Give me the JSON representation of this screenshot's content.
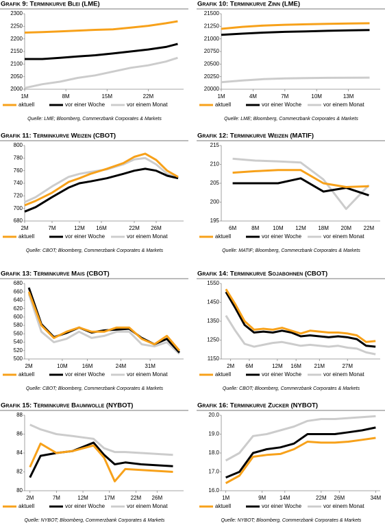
{
  "chart_data": [
    {
      "type": "line",
      "title": "Grafik 9: Terminkurve Blei (LME)",
      "source": "Quelle: LME; Bloomberg, Commerzbank Corporates & Markets",
      "x": [
        1,
        4,
        7,
        10,
        13,
        16,
        19,
        22,
        25,
        27
      ],
      "xlim": [
        1,
        28
      ],
      "xticks": [
        {
          "value": 1,
          "label": "1M"
        },
        {
          "value": 8,
          "label": "8M"
        },
        {
          "value": 15,
          "label": "15M"
        },
        {
          "value": 22,
          "label": "22M"
        }
      ],
      "ylim": [
        2000,
        2300
      ],
      "yticks": [
        2000,
        2050,
        2100,
        2150,
        2200,
        2250,
        2300
      ],
      "series": [
        {
          "name": "aktuell",
          "color": "#f7a11a",
          "values": [
            2225,
            2227,
            2230,
            2233,
            2236,
            2238,
            2245,
            2252,
            2262,
            2270
          ]
        },
        {
          "name": "vor einer Woche",
          "color": "#000000",
          "values": [
            2120,
            2120,
            2125,
            2130,
            2135,
            2142,
            2150,
            2158,
            2168,
            2180
          ]
        },
        {
          "name": "vor einem Monat",
          "color": "#cccccc",
          "values": [
            2005,
            2020,
            2030,
            2045,
            2055,
            2070,
            2085,
            2095,
            2110,
            2125
          ]
        }
      ]
    },
    {
      "type": "line",
      "title": "Grafik 10: Terminkurve Zinn (LME)",
      "source": "Quelle: LME; Bloomberg, Commerzbank Corporates & Markets",
      "x": [
        1,
        3,
        5,
        7,
        9,
        11,
        13,
        15
      ],
      "xlim": [
        1,
        16
      ],
      "xticks": [
        {
          "value": 1,
          "label": "1M"
        },
        {
          "value": 4,
          "label": "4M"
        },
        {
          "value": 7,
          "label": "7M"
        },
        {
          "value": 10,
          "label": "10M"
        },
        {
          "value": 13,
          "label": "13M"
        }
      ],
      "ylim": [
        20000,
        21500
      ],
      "yticks": [
        20000,
        20250,
        20500,
        20750,
        21000,
        21250,
        21500
      ],
      "series": [
        {
          "name": "aktuell",
          "color": "#f7a11a",
          "values": [
            21200,
            21240,
            21265,
            21280,
            21290,
            21298,
            21305,
            21310
          ]
        },
        {
          "name": "vor einer Woche",
          "color": "#000000",
          "values": [
            21080,
            21105,
            21125,
            21140,
            21150,
            21160,
            21168,
            21175
          ]
        },
        {
          "name": "vor einem Monat",
          "color": "#cccccc",
          "values": [
            20140,
            20175,
            20200,
            20215,
            20222,
            20227,
            20229,
            20230
          ]
        }
      ]
    },
    {
      "type": "line",
      "title": "Grafik 11: Terminkurve Weizen (CBOT)",
      "source": "Quelle: CBOT; Bloomberg, Commerzbank Corporates & Markets",
      "x": [
        2,
        4,
        7,
        10,
        12,
        14,
        17,
        20,
        22,
        24,
        26,
        28,
        30
      ],
      "xlim": [
        2,
        31
      ],
      "xticks": [
        {
          "value": 2,
          "label": "2M"
        },
        {
          "value": 7,
          "label": "7M"
        },
        {
          "value": 12,
          "label": "12M"
        },
        {
          "value": 16,
          "label": "16M"
        },
        {
          "value": 22,
          "label": "22M"
        },
        {
          "value": 26,
          "label": "26M"
        }
      ],
      "ylim": [
        680,
        800
      ],
      "yticks": [
        680,
        700,
        720,
        740,
        760,
        780,
        800
      ],
      "series": [
        {
          "name": "aktuell",
          "color": "#f7a11a",
          "values": [
            705,
            712,
            725,
            742,
            748,
            755,
            763,
            772,
            782,
            787,
            777,
            760,
            750
          ]
        },
        {
          "name": "vor einer Woche",
          "color": "#000000",
          "values": [
            695,
            702,
            718,
            733,
            740,
            743,
            748,
            755,
            760,
            763,
            760,
            752,
            748
          ]
        },
        {
          "name": "vor einem Monat",
          "color": "#cccccc",
          "values": [
            710,
            718,
            735,
            750,
            755,
            758,
            762,
            770,
            778,
            780,
            770,
            755,
            748
          ]
        }
      ]
    },
    {
      "type": "line",
      "title": "Grafik 12: Terminkurve Weizen (MATIF)",
      "source": "Quelle: MATIF; Bloomberg, Commerzbank Corporates & Markets",
      "categories": [
        "6M",
        "8M",
        "10M",
        "12M",
        "18M",
        "20M",
        "22M"
      ],
      "ylim": [
        195,
        215
      ],
      "yticks": [
        195,
        200,
        205,
        210,
        215
      ],
      "series": [
        {
          "name": "aktuell",
          "color": "#f7a11a",
          "values": [
            207.8,
            208.2,
            208.5,
            208.5,
            205,
            204,
            204.2
          ]
        },
        {
          "name": "vor einer Woche",
          "color": "#000000",
          "values": [
            205,
            205,
            205,
            206.3,
            202.8,
            203.8,
            201.8
          ]
        },
        {
          "name": "vor einem Monat",
          "color": "#cccccc",
          "values": [
            211.5,
            211,
            210.8,
            210.5,
            206,
            198.2,
            204.5
          ]
        }
      ]
    },
    {
      "type": "line",
      "title": "Grafik 13: Terminkurve Mais (CBOT)",
      "source": "Quelle: CBOT; Bloomberg, Commerzbank Corporates & Markets",
      "x": [
        2,
        5,
        8,
        11,
        14,
        17,
        20,
        23,
        26,
        29,
        32,
        35,
        38
      ],
      "xlim": [
        1,
        39
      ],
      "xticks": [
        {
          "value": 2,
          "label": "2M"
        },
        {
          "value": 10,
          "label": "10M"
        },
        {
          "value": 16,
          "label": "16M"
        },
        {
          "value": 24,
          "label": "24M"
        },
        {
          "value": 31,
          "label": "31M"
        }
      ],
      "ylim": [
        500,
        680
      ],
      "yticks": [
        500,
        520,
        540,
        560,
        580,
        600,
        620,
        640,
        660,
        680
      ],
      "series": [
        {
          "name": "aktuell",
          "color": "#f7a11a",
          "values": [
            660,
            580,
            550,
            565,
            575,
            565,
            565,
            575,
            575,
            548,
            535,
            555,
            520
          ]
        },
        {
          "name": "vor einer Woche",
          "color": "#000000",
          "values": [
            670,
            583,
            552,
            562,
            575,
            563,
            568,
            570,
            572,
            550,
            535,
            548,
            515
          ]
        },
        {
          "name": "vor einem Monat",
          "color": "#cccccc",
          "values": [
            655,
            565,
            540,
            548,
            565,
            550,
            555,
            565,
            565,
            535,
            530,
            540,
            512
          ]
        }
      ]
    },
    {
      "type": "line",
      "title": "Grafik 14: Terminkurve Sojabohnen (CBOT)",
      "source": "Quelle: CBOT; Bloomberg, Commerzbank Corporates & Markets",
      "x": [
        1,
        3,
        5,
        7,
        9,
        11,
        13,
        15,
        17,
        19,
        21,
        23,
        25,
        27,
        29,
        31,
        33
      ],
      "xlim": [
        0,
        34
      ],
      "xticks": [
        {
          "value": 2,
          "label": "2M"
        },
        {
          "value": 6,
          "label": "6M"
        },
        {
          "value": 12,
          "label": "12M"
        },
        {
          "value": 16,
          "label": "16M"
        },
        {
          "value": 21,
          "label": "21M"
        },
        {
          "value": 27,
          "label": "27M"
        }
      ],
      "ylim": [
        1150,
        1550
      ],
      "yticks": [
        1150,
        1250,
        1350,
        1450,
        1550
      ],
      "series": [
        {
          "name": "aktuell",
          "color": "#f7a11a",
          "values": [
            1520,
            1440,
            1350,
            1305,
            1310,
            1305,
            1315,
            1300,
            1285,
            1300,
            1295,
            1290,
            1290,
            1285,
            1275,
            1240,
            1245
          ]
        },
        {
          "name": "vor einer Woche",
          "color": "#000000",
          "values": [
            1505,
            1420,
            1330,
            1290,
            1295,
            1290,
            1300,
            1290,
            1270,
            1275,
            1270,
            1265,
            1270,
            1265,
            1255,
            1220,
            1215
          ]
        },
        {
          "name": "vor einem Monat",
          "color": "#cccccc",
          "values": [
            1380,
            1300,
            1230,
            1215,
            1225,
            1235,
            1240,
            1230,
            1220,
            1225,
            1220,
            1215,
            1220,
            1210,
            1205,
            1185,
            1175
          ]
        }
      ]
    },
    {
      "type": "line",
      "title": "Grafik 15: Terminkurve Baumwolle (NYBOT)",
      "source": "Quelle: NYBOT; Bloomberg, Commerzbank Corporates & Markets",
      "x": [
        2,
        4,
        7,
        10,
        14,
        16,
        18,
        20,
        23,
        29
      ],
      "xlim": [
        1,
        31
      ],
      "xticks": [
        {
          "value": 2,
          "label": "2M"
        },
        {
          "value": 7,
          "label": "7M"
        },
        {
          "value": 12,
          "label": "12M"
        },
        {
          "value": 17,
          "label": "17M"
        },
        {
          "value": 22,
          "label": "22M"
        },
        {
          "value": 26,
          "label": "26M"
        }
      ],
      "ylim": [
        80,
        88
      ],
      "yticks": [
        80,
        82,
        84,
        86,
        88
      ],
      "series": [
        {
          "name": "aktuell",
          "color": "#f7a11a",
          "values": [
            82.5,
            85,
            84,
            84.2,
            84.8,
            83.5,
            81,
            82.3,
            82.2,
            82
          ]
        },
        {
          "name": "vor einer Woche",
          "color": "#000000",
          "values": [
            81.4,
            83.7,
            84,
            84.2,
            85.1,
            83.8,
            82.8,
            83,
            82.8,
            82.6
          ]
        },
        {
          "name": "vor einem Monat",
          "color": "#cccccc",
          "values": [
            87,
            86.5,
            86,
            85.8,
            85.5,
            84.5,
            84.1,
            84.1,
            84,
            83.8
          ]
        }
      ]
    },
    {
      "type": "line",
      "title": "Grafik 16: Terminkurve Zucker (NYBOT)",
      "source": "Quelle: NYBOT; Bloomberg, Commerzbank Corporates & Markets",
      "x": [
        1,
        4,
        7,
        10,
        13,
        16,
        19,
        22,
        25,
        28,
        31,
        34
      ],
      "xlim": [
        0,
        35
      ],
      "xticks": [
        {
          "value": 1,
          "label": "1M"
        },
        {
          "value": 9,
          "label": "9M"
        },
        {
          "value": 14,
          "label": "14M"
        },
        {
          "value": 22,
          "label": "22M"
        },
        {
          "value": 26,
          "label": "26M"
        },
        {
          "value": 34,
          "label": "34M"
        }
      ],
      "ylim": [
        16,
        20
      ],
      "yticks": [
        {
          "value": 16,
          "label": "16.0"
        },
        {
          "value": 17,
          "label": "17.0"
        },
        {
          "value": 18,
          "label": "18.0"
        },
        {
          "value": 19,
          "label": "19.0"
        },
        {
          "value": 20,
          "label": "20.0"
        }
      ],
      "series": [
        {
          "name": "aktuell",
          "color": "#f7a11a",
          "values": [
            16.4,
            16.8,
            17.8,
            17.9,
            17.95,
            18.2,
            18.6,
            18.55,
            18.55,
            18.6,
            18.7,
            18.8
          ]
        },
        {
          "name": "vor einer Woche",
          "color": "#000000",
          "values": [
            16.7,
            17.0,
            18.0,
            18.2,
            18.3,
            18.5,
            19.0,
            19.0,
            19.0,
            19.1,
            19.2,
            19.35
          ]
        },
        {
          "name": "vor einem Monat",
          "color": "#cccccc",
          "values": [
            17.6,
            18.0,
            18.9,
            19.0,
            19.2,
            19.4,
            19.7,
            19.8,
            19.8,
            19.85,
            19.9,
            19.95
          ]
        }
      ]
    }
  ]
}
